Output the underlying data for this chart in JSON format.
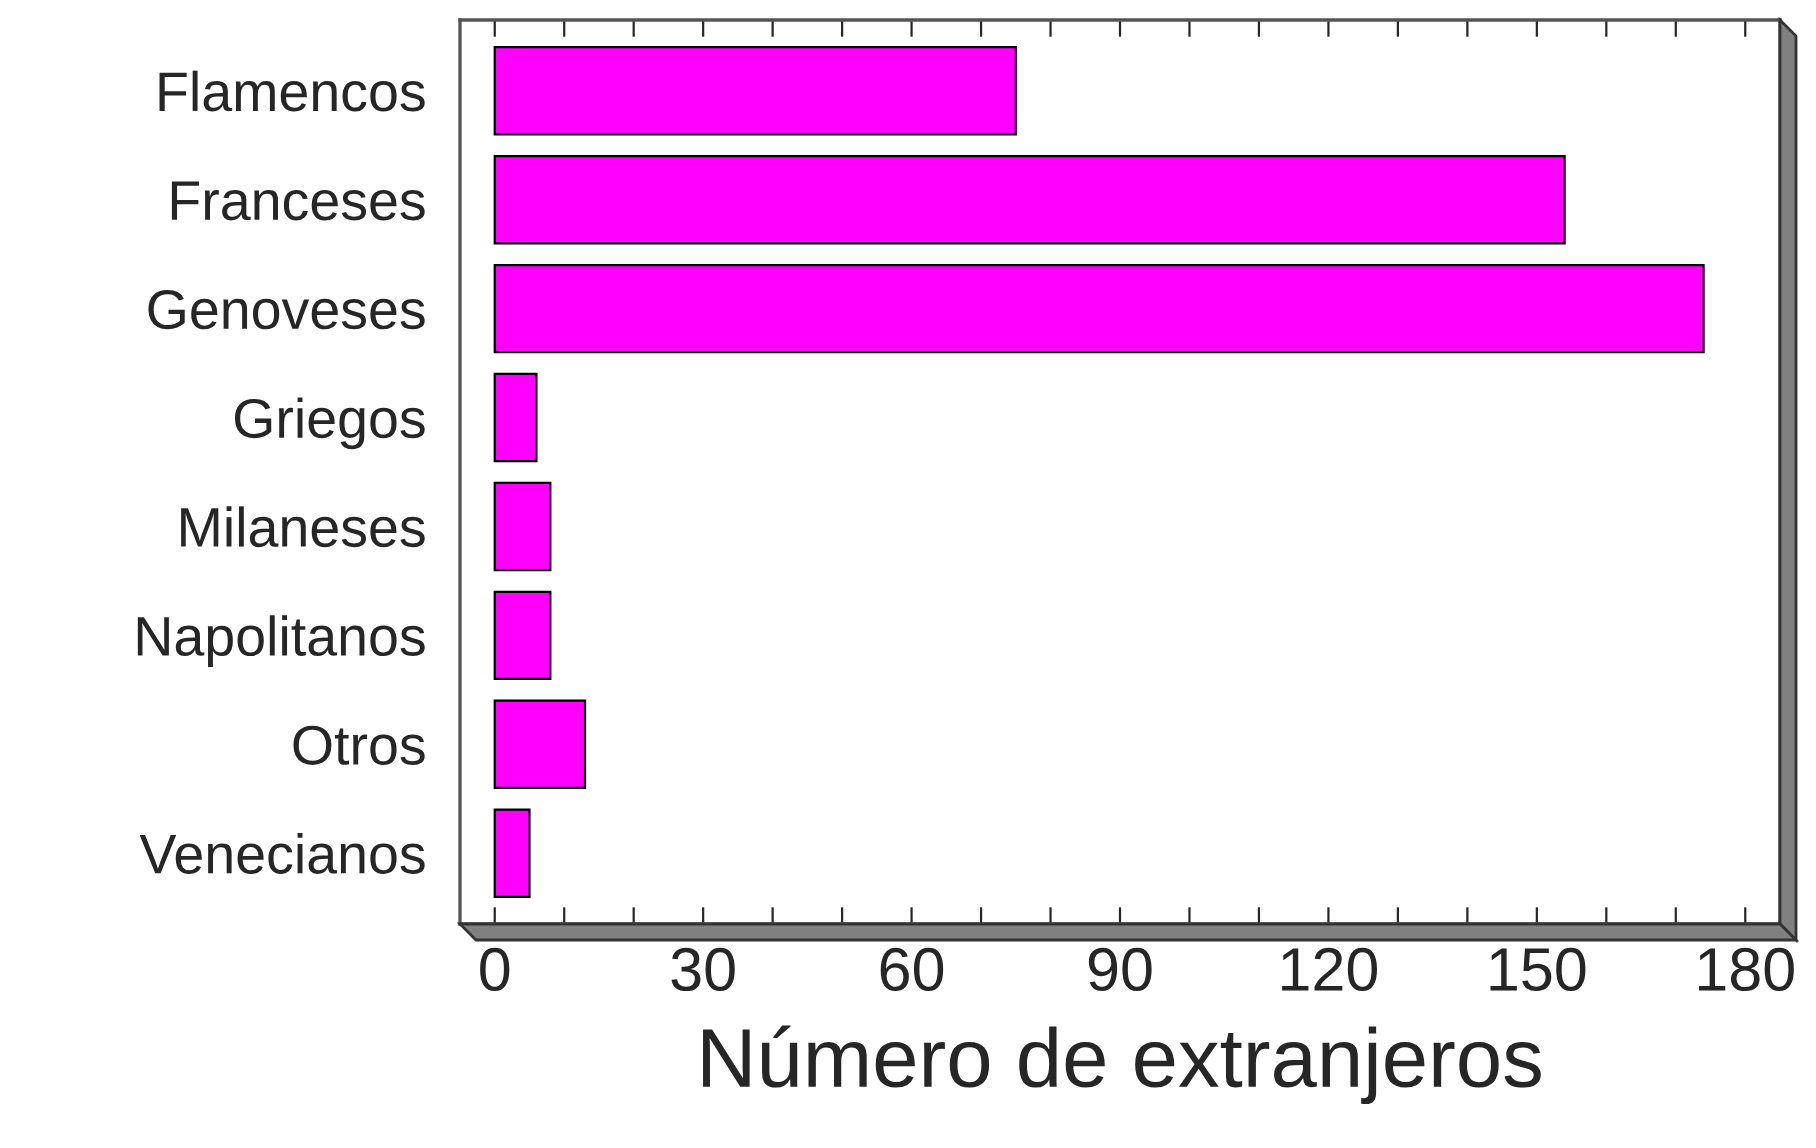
{
  "chart_data": {
    "type": "bar",
    "orientation": "horizontal",
    "xlabel": "Número de extranjeros",
    "categories": [
      "Flamencos",
      "Franceses",
      "Genoveses",
      "Griegos",
      "Milaneses",
      "Napolitanos",
      "Otros",
      "Venecianos"
    ],
    "values": [
      75,
      154,
      174,
      6,
      8,
      8,
      13,
      5
    ],
    "color": "#ff00ff",
    "xlim": [
      -5,
      185
    ],
    "xticks": [
      0,
      {
        "value": 10,
        "label": null
      },
      {
        "value": 20,
        "label": null
      },
      30,
      {
        "value": 40,
        "label": null
      },
      {
        "value": 50,
        "label": null
      },
      60,
      {
        "value": 70,
        "label": null
      },
      {
        "value": 80,
        "label": null
      },
      90,
      {
        "value": 100,
        "label": null
      },
      {
        "value": 110,
        "label": null
      },
      120,
      {
        "value": 130,
        "label": null
      },
      {
        "value": 140,
        "label": null
      },
      150,
      {
        "value": 160,
        "label": null
      },
      {
        "value": 170,
        "label": null
      },
      180
    ],
    "grid": false,
    "legend": false
  }
}
